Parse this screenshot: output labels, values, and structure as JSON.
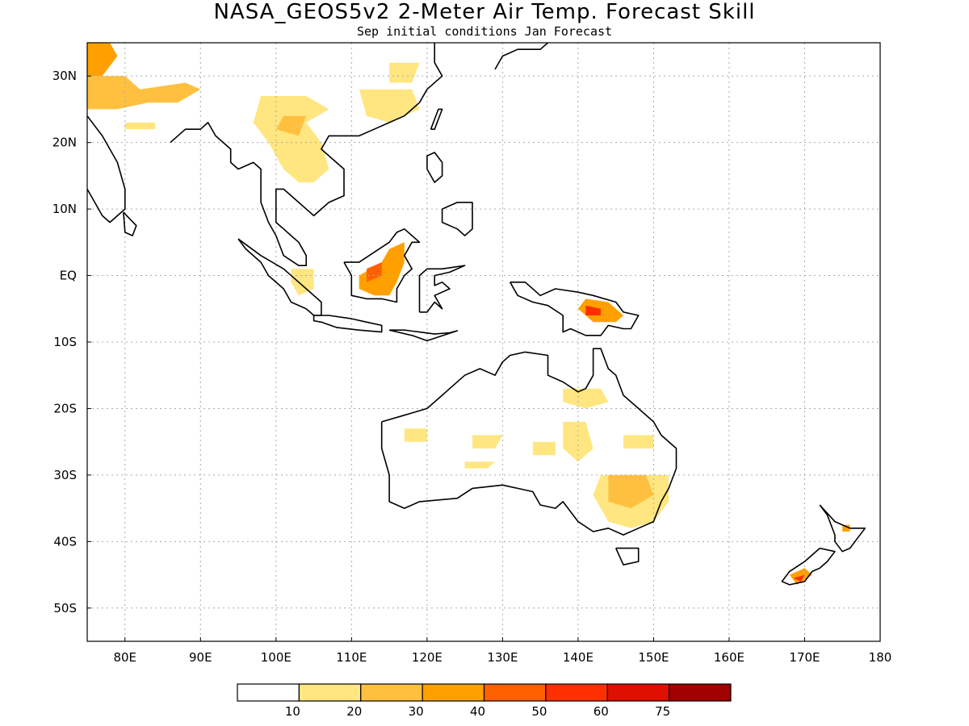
{
  "title": "NASA_GEOS5v2 2-Meter Air Temp. Forecast Skill",
  "subtitle": "Sep initial conditions   Jan Forecast",
  "map": {
    "lon_range": [
      75,
      180
    ],
    "lat_range": [
      -55,
      35
    ],
    "lon_ticks": [
      {
        "value": 80,
        "label": "80E"
      },
      {
        "value": 90,
        "label": "90E"
      },
      {
        "value": 100,
        "label": "100E"
      },
      {
        "value": 110,
        "label": "110E"
      },
      {
        "value": 120,
        "label": "120E"
      },
      {
        "value": 130,
        "label": "130E"
      },
      {
        "value": 140,
        "label": "140E"
      },
      {
        "value": 150,
        "label": "150E"
      },
      {
        "value": 160,
        "label": "160E"
      },
      {
        "value": 170,
        "label": "170E"
      },
      {
        "value": 180,
        "label": "180"
      }
    ],
    "lat_ticks": [
      {
        "value": 30,
        "label": "30N"
      },
      {
        "value": 20,
        "label": "20N"
      },
      {
        "value": 10,
        "label": "10N"
      },
      {
        "value": 0,
        "label": "EQ"
      },
      {
        "value": -10,
        "label": "10S"
      },
      {
        "value": -20,
        "label": "20S"
      },
      {
        "value": -30,
        "label": "30S"
      },
      {
        "value": -40,
        "label": "40S"
      },
      {
        "value": -50,
        "label": "50S"
      }
    ],
    "grid": true
  },
  "colorbar": {
    "colors": [
      "#ffffff",
      "#ffe680",
      "#ffc040",
      "#ffa000",
      "#ff6000",
      "#ff3000",
      "#e01000",
      "#a00000"
    ],
    "labels": [
      "10",
      "20",
      "30",
      "40",
      "50",
      "60",
      "75"
    ]
  },
  "coast": [
    [
      [
        75,
        24
      ],
      [
        77,
        21
      ],
      [
        79,
        17
      ],
      [
        80,
        13
      ],
      [
        80,
        10
      ],
      [
        78,
        8
      ],
      [
        77,
        9
      ],
      [
        76,
        11
      ],
      [
        75,
        13
      ]
    ],
    [
      [
        79.8,
        9.5
      ],
      [
        81.5,
        7.5
      ],
      [
        81,
        6
      ],
      [
        80,
        6.5
      ],
      [
        79.8,
        9.5
      ]
    ],
    [
      [
        86,
        20
      ],
      [
        88,
        22
      ],
      [
        90,
        22
      ],
      [
        91,
        23
      ],
      [
        92,
        21
      ],
      [
        94,
        19
      ],
      [
        94,
        17
      ],
      [
        95,
        16
      ],
      [
        97,
        17
      ],
      [
        98,
        16
      ],
      [
        98,
        11
      ],
      [
        99,
        8
      ],
      [
        100,
        6
      ],
      [
        101,
        3
      ],
      [
        103,
        1.5
      ],
      [
        104,
        1.5
      ],
      [
        104,
        3
      ],
      [
        103,
        5
      ],
      [
        102,
        6
      ],
      [
        101,
        7
      ],
      [
        100,
        8
      ],
      [
        100,
        13
      ],
      [
        101,
        13
      ],
      [
        103,
        11
      ],
      [
        105,
        9
      ],
      [
        106,
        10
      ],
      [
        107,
        11
      ],
      [
        109,
        12
      ],
      [
        109,
        16
      ],
      [
        106,
        19
      ],
      [
        107,
        21
      ],
      [
        109,
        21
      ],
      [
        111,
        21
      ],
      [
        113,
        22
      ],
      [
        115,
        23
      ],
      [
        117,
        24
      ],
      [
        119,
        26
      ],
      [
        120,
        28
      ],
      [
        122,
        30
      ],
      [
        121,
        32
      ],
      [
        121,
        35
      ]
    ],
    [
      [
        95,
        5.5
      ],
      [
        98,
        3
      ],
      [
        101,
        1
      ],
      [
        103,
        -1
      ],
      [
        104,
        -2
      ],
      [
        106,
        -4
      ],
      [
        106,
        -6
      ],
      [
        105,
        -6
      ],
      [
        104,
        -5
      ],
      [
        102,
        -4
      ],
      [
        101,
        -2
      ],
      [
        99,
        0
      ],
      [
        98,
        2
      ],
      [
        96,
        4
      ],
      [
        95,
        5.5
      ]
    ],
    [
      [
        105,
        -6
      ],
      [
        107,
        -6
      ],
      [
        110,
        -6.5
      ],
      [
        112,
        -7
      ],
      [
        114,
        -7.5
      ],
      [
        114,
        -8.5
      ],
      [
        111,
        -8.2
      ],
      [
        108,
        -7.8
      ],
      [
        106,
        -7
      ],
      [
        105,
        -6.8
      ],
      [
        105,
        -6
      ]
    ],
    [
      [
        115,
        -8.2
      ],
      [
        117,
        -8.2
      ],
      [
        119,
        -8.5
      ],
      [
        121,
        -8.8
      ],
      [
        123,
        -8.6
      ],
      [
        124,
        -8.3
      ],
      [
        120,
        -9.8
      ],
      [
        118,
        -9
      ],
      [
        115,
        -8.2
      ]
    ],
    [
      [
        109,
        2
      ],
      [
        110,
        0
      ],
      [
        110,
        -3
      ],
      [
        112,
        -3.5
      ],
      [
        114,
        -3.5
      ],
      [
        116,
        -4
      ],
      [
        116,
        -2
      ],
      [
        117,
        0
      ],
      [
        118,
        1
      ],
      [
        117,
        3
      ],
      [
        118,
        5
      ],
      [
        119,
        5
      ],
      [
        117,
        7
      ],
      [
        116,
        6.5
      ],
      [
        115,
        5
      ],
      [
        113,
        3.5
      ],
      [
        111,
        2
      ],
      [
        109,
        2
      ]
    ],
    [
      [
        119,
        -5.5
      ],
      [
        119,
        -3
      ],
      [
        119,
        0
      ],
      [
        120,
        1
      ],
      [
        122,
        1
      ],
      [
        125,
        1.5
      ],
      [
        123,
        0.5
      ],
      [
        121,
        0
      ],
      [
        121,
        -1.5
      ],
      [
        122,
        -1
      ],
      [
        123,
        -2
      ],
      [
        121,
        -3
      ],
      [
        122,
        -5
      ],
      [
        121,
        -4
      ],
      [
        120,
        -5.5
      ],
      [
        119,
        -5.5
      ]
    ],
    [
      [
        120,
        16
      ],
      [
        120,
        18
      ],
      [
        121,
        18.5
      ],
      [
        122,
        17
      ],
      [
        122,
        15
      ],
      [
        121,
        14
      ],
      [
        120,
        16
      ]
    ],
    [
      [
        122,
        10
      ],
      [
        124,
        11
      ],
      [
        126,
        11
      ],
      [
        126,
        7
      ],
      [
        125,
        6
      ],
      [
        124,
        7
      ],
      [
        122,
        8
      ],
      [
        122,
        10
      ]
    ],
    [
      [
        120.5,
        22
      ],
      [
        121.5,
        25
      ],
      [
        122,
        25
      ],
      [
        121,
        22
      ],
      [
        120.5,
        22
      ]
    ],
    [
      [
        129,
        31
      ],
      [
        130,
        33
      ],
      [
        132,
        34
      ],
      [
        134,
        34
      ],
      [
        135,
        34
      ],
      [
        136,
        35
      ]
    ],
    [
      [
        131,
        -1
      ],
      [
        133,
        -1
      ],
      [
        135,
        -3
      ],
      [
        137,
        -2
      ],
      [
        140,
        -2.5
      ],
      [
        142,
        -3
      ],
      [
        145,
        -4
      ],
      [
        146,
        -5.5
      ],
      [
        148,
        -6
      ],
      [
        147,
        -8
      ],
      [
        146,
        -8
      ],
      [
        144,
        -7.5
      ],
      [
        143,
        -9
      ],
      [
        141,
        -9
      ],
      [
        139,
        -8
      ],
      [
        138,
        -8.5
      ],
      [
        138,
        -6
      ],
      [
        136,
        -4.5
      ],
      [
        134,
        -4
      ],
      [
        132,
        -3
      ],
      [
        131,
        -1
      ]
    ],
    [
      [
        114,
        -22
      ],
      [
        114,
        -26
      ],
      [
        115,
        -30
      ],
      [
        115,
        -34
      ],
      [
        117,
        -35
      ],
      [
        119,
        -34
      ],
      [
        124,
        -33.5
      ],
      [
        126,
        -32
      ],
      [
        130,
        -31.5
      ],
      [
        132,
        -32
      ],
      [
        134,
        -32.5
      ],
      [
        135,
        -34.5
      ],
      [
        137,
        -35
      ],
      [
        138,
        -34
      ],
      [
        140,
        -37
      ],
      [
        142,
        -38.5
      ],
      [
        144,
        -38
      ],
      [
        146,
        -39
      ],
      [
        148,
        -38
      ],
      [
        150,
        -37
      ],
      [
        151,
        -34
      ],
      [
        152,
        -32
      ],
      [
        153,
        -29
      ],
      [
        153,
        -26
      ],
      [
        151,
        -24
      ],
      [
        150,
        -22
      ],
      [
        148,
        -20
      ],
      [
        146,
        -18
      ],
      [
        145,
        -15
      ],
      [
        144,
        -14
      ],
      [
        143,
        -11
      ],
      [
        142,
        -11
      ],
      [
        142,
        -15
      ],
      [
        141,
        -17
      ],
      [
        140,
        -17.5
      ],
      [
        138,
        -16
      ],
      [
        136,
        -15
      ],
      [
        136,
        -12
      ],
      [
        133,
        -11.5
      ],
      [
        131,
        -12
      ],
      [
        130,
        -13
      ],
      [
        129,
        -15
      ],
      [
        127,
        -14
      ],
      [
        125,
        -15
      ],
      [
        123,
        -17
      ],
      [
        122,
        -18
      ],
      [
        120,
        -20
      ],
      [
        117,
        -21
      ],
      [
        114,
        -22
      ]
    ],
    [
      [
        145,
        -41
      ],
      [
        148,
        -41
      ],
      [
        148,
        -43
      ],
      [
        146,
        -43.5
      ],
      [
        145,
        -41
      ]
    ],
    [
      [
        172,
        -34.5
      ],
      [
        174,
        -37
      ],
      [
        176,
        -38
      ],
      [
        178,
        -38
      ],
      [
        177,
        -39.5
      ],
      [
        176,
        -41
      ],
      [
        175,
        -41.5
      ],
      [
        174,
        -40
      ],
      [
        174,
        -39
      ],
      [
        173,
        -36
      ],
      [
        172,
        -34.5
      ]
    ],
    [
      [
        172,
        -41
      ],
      [
        174,
        -41.5
      ],
      [
        173,
        -43
      ],
      [
        172,
        -44
      ],
      [
        171,
        -44.5
      ],
      [
        170,
        -46
      ],
      [
        168,
        -46.5
      ],
      [
        167,
        -46
      ],
      [
        168,
        -44.5
      ],
      [
        170,
        -43
      ],
      [
        172,
        -41
      ]
    ]
  ],
  "shading": [
    {
      "level": 3,
      "pts": [
        [
          75,
          35
        ],
        [
          78,
          35
        ],
        [
          79,
          33
        ],
        [
          77,
          30
        ],
        [
          75,
          30
        ]
      ]
    },
    {
      "level": 2,
      "pts": [
        [
          75,
          30
        ],
        [
          80,
          30
        ],
        [
          82,
          28
        ],
        [
          88,
          29
        ],
        [
          90,
          28
        ],
        [
          87,
          26
        ],
        [
          83,
          26
        ],
        [
          79,
          25
        ],
        [
          75,
          25
        ]
      ]
    },
    {
      "level": 1,
      "pts": [
        [
          80,
          23
        ],
        [
          84,
          23
        ],
        [
          84,
          22
        ],
        [
          80,
          22
        ]
      ]
    },
    {
      "level": 1,
      "pts": [
        [
          98,
          27
        ],
        [
          104,
          27
        ],
        [
          107,
          25
        ],
        [
          104,
          23
        ],
        [
          106,
          20
        ],
        [
          107,
          16
        ],
        [
          105,
          14
        ],
        [
          103,
          14
        ],
        [
          101,
          16
        ],
        [
          99,
          20
        ],
        [
          97,
          23
        ]
      ]
    },
    {
      "level": 2,
      "pts": [
        [
          101,
          24
        ],
        [
          104,
          24
        ],
        [
          103,
          21
        ],
        [
          100,
          22
        ]
      ]
    },
    {
      "level": 1,
      "pts": [
        [
          111,
          28
        ],
        [
          118,
          28
        ],
        [
          119,
          25
        ],
        [
          115,
          23
        ],
        [
          112,
          24
        ]
      ]
    },
    {
      "level": 1,
      "pts": [
        [
          115,
          32
        ],
        [
          119,
          32
        ],
        [
          118,
          29
        ],
        [
          115,
          29
        ]
      ]
    },
    {
      "level": 3,
      "pts": [
        [
          111,
          0
        ],
        [
          114,
          2
        ],
        [
          115,
          4
        ],
        [
          117,
          5
        ],
        [
          117,
          2
        ],
        [
          116,
          -1
        ],
        [
          115,
          -3
        ],
        [
          113,
          -3
        ],
        [
          111,
          -2
        ]
      ]
    },
    {
      "level": 4,
      "pts": [
        [
          112,
          1
        ],
        [
          114,
          2
        ],
        [
          114,
          0
        ],
        [
          112,
          -1
        ]
      ]
    },
    {
      "level": 1,
      "pts": [
        [
          102,
          1
        ],
        [
          105,
          1
        ],
        [
          105,
          -2
        ],
        [
          103,
          -3
        ],
        [
          102,
          -1
        ]
      ]
    },
    {
      "level": 3,
      "pts": [
        [
          141,
          -3.5
        ],
        [
          144,
          -4
        ],
        [
          146,
          -6
        ],
        [
          145,
          -7
        ],
        [
          142,
          -7
        ],
        [
          140,
          -5
        ]
      ]
    },
    {
      "level": 5,
      "pts": [
        [
          141,
          -4.5
        ],
        [
          143,
          -5
        ],
        [
          143,
          -6
        ],
        [
          141,
          -6
        ]
      ]
    },
    {
      "level": 1,
      "pts": [
        [
          143,
          -30
        ],
        [
          148,
          -30
        ],
        [
          152,
          -30
        ],
        [
          152,
          -34
        ],
        [
          150,
          -37
        ],
        [
          147,
          -38
        ],
        [
          144,
          -37
        ],
        [
          142,
          -33
        ]
      ]
    },
    {
      "level": 2,
      "pts": [
        [
          144,
          -30
        ],
        [
          149,
          -30
        ],
        [
          150,
          -33
        ],
        [
          147,
          -35
        ],
        [
          144,
          -34
        ]
      ]
    },
    {
      "level": 1,
      "pts": [
        [
          138,
          -22
        ],
        [
          141,
          -22
        ],
        [
          142,
          -26
        ],
        [
          140,
          -28
        ],
        [
          138,
          -26
        ]
      ]
    },
    {
      "level": 1,
      "pts": [
        [
          146,
          -24
        ],
        [
          150,
          -24
        ],
        [
          150,
          -26
        ],
        [
          146,
          -26
        ]
      ]
    },
    {
      "level": 1,
      "pts": [
        [
          138,
          -17
        ],
        [
          143,
          -17
        ],
        [
          144,
          -19
        ],
        [
          141,
          -20
        ],
        [
          138,
          -19
        ]
      ]
    },
    {
      "level": 1,
      "pts": [
        [
          126,
          -24
        ],
        [
          130,
          -24
        ],
        [
          129,
          -26
        ],
        [
          126,
          -26
        ]
      ]
    },
    {
      "level": 1,
      "pts": [
        [
          117,
          -23
        ],
        [
          120,
          -23
        ],
        [
          120,
          -25
        ],
        [
          117,
          -25
        ]
      ]
    },
    {
      "level": 1,
      "pts": [
        [
          134,
          -25
        ],
        [
          137,
          -25
        ],
        [
          137,
          -27
        ],
        [
          134,
          -27
        ]
      ]
    },
    {
      "level": 1,
      "pts": [
        [
          125,
          -28
        ],
        [
          129,
          -28
        ],
        [
          128,
          -29
        ],
        [
          125,
          -29
        ]
      ]
    },
    {
      "level": 3,
      "pts": [
        [
          168,
          -45
        ],
        [
          170,
          -44
        ],
        [
          171,
          -45
        ],
        [
          169,
          -46.5
        ]
      ]
    },
    {
      "level": 5,
      "pts": [
        [
          168.5,
          -45.5
        ],
        [
          170,
          -45
        ],
        [
          169.5,
          -46
        ]
      ]
    },
    {
      "level": 3,
      "pts": [
        [
          175,
          -37.5
        ],
        [
          176,
          -37.5
        ],
        [
          176,
          -38.5
        ],
        [
          175,
          -38.5
        ]
      ]
    }
  ]
}
